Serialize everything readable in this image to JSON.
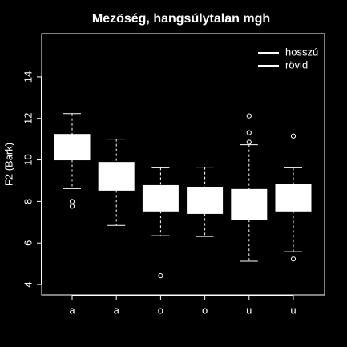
{
  "chart_data": {
    "type": "boxplot",
    "title": "Mezöség, hangsúlytalan mgh",
    "ylabel": "F2 (Bark)",
    "categories": [
      "a",
      "a",
      "o",
      "o",
      "u",
      "u"
    ],
    "boxes": [
      {
        "min": 8.62,
        "q1": 10.0,
        "median": 10.5,
        "q3": 11.23,
        "max": 12.23,
        "outliers": [
          8.0,
          7.77
        ]
      },
      {
        "min": 6.85,
        "q1": 8.54,
        "median": 9.3,
        "q3": 9.88,
        "max": 11.0,
        "outliers": []
      },
      {
        "min": 6.35,
        "q1": 7.54,
        "median": 8.2,
        "q3": 8.77,
        "max": 9.62,
        "outliers": [
          4.42
        ]
      },
      {
        "min": 6.31,
        "q1": 7.42,
        "median": 8.1,
        "q3": 8.69,
        "max": 9.65,
        "outliers": []
      },
      {
        "min": 5.12,
        "q1": 7.12,
        "median": 7.9,
        "q3": 8.58,
        "max": 10.73,
        "outliers": [
          12.12,
          11.31,
          10.85
        ]
      },
      {
        "min": 5.58,
        "q1": 7.54,
        "median": 8.2,
        "q3": 8.81,
        "max": 9.62,
        "outliers": [
          5.23,
          11.15
        ]
      }
    ],
    "color": "#ffffff",
    "legend": [
      {
        "name": "hosszú",
        "color": "#ffffff"
      },
      {
        "name": "rövid",
        "color": "#ffffff"
      }
    ],
    "legend_position": "top-right",
    "ylim": [
      3.5,
      16.08
    ],
    "yticks": [
      4,
      6,
      8,
      10,
      12,
      14
    ]
  }
}
